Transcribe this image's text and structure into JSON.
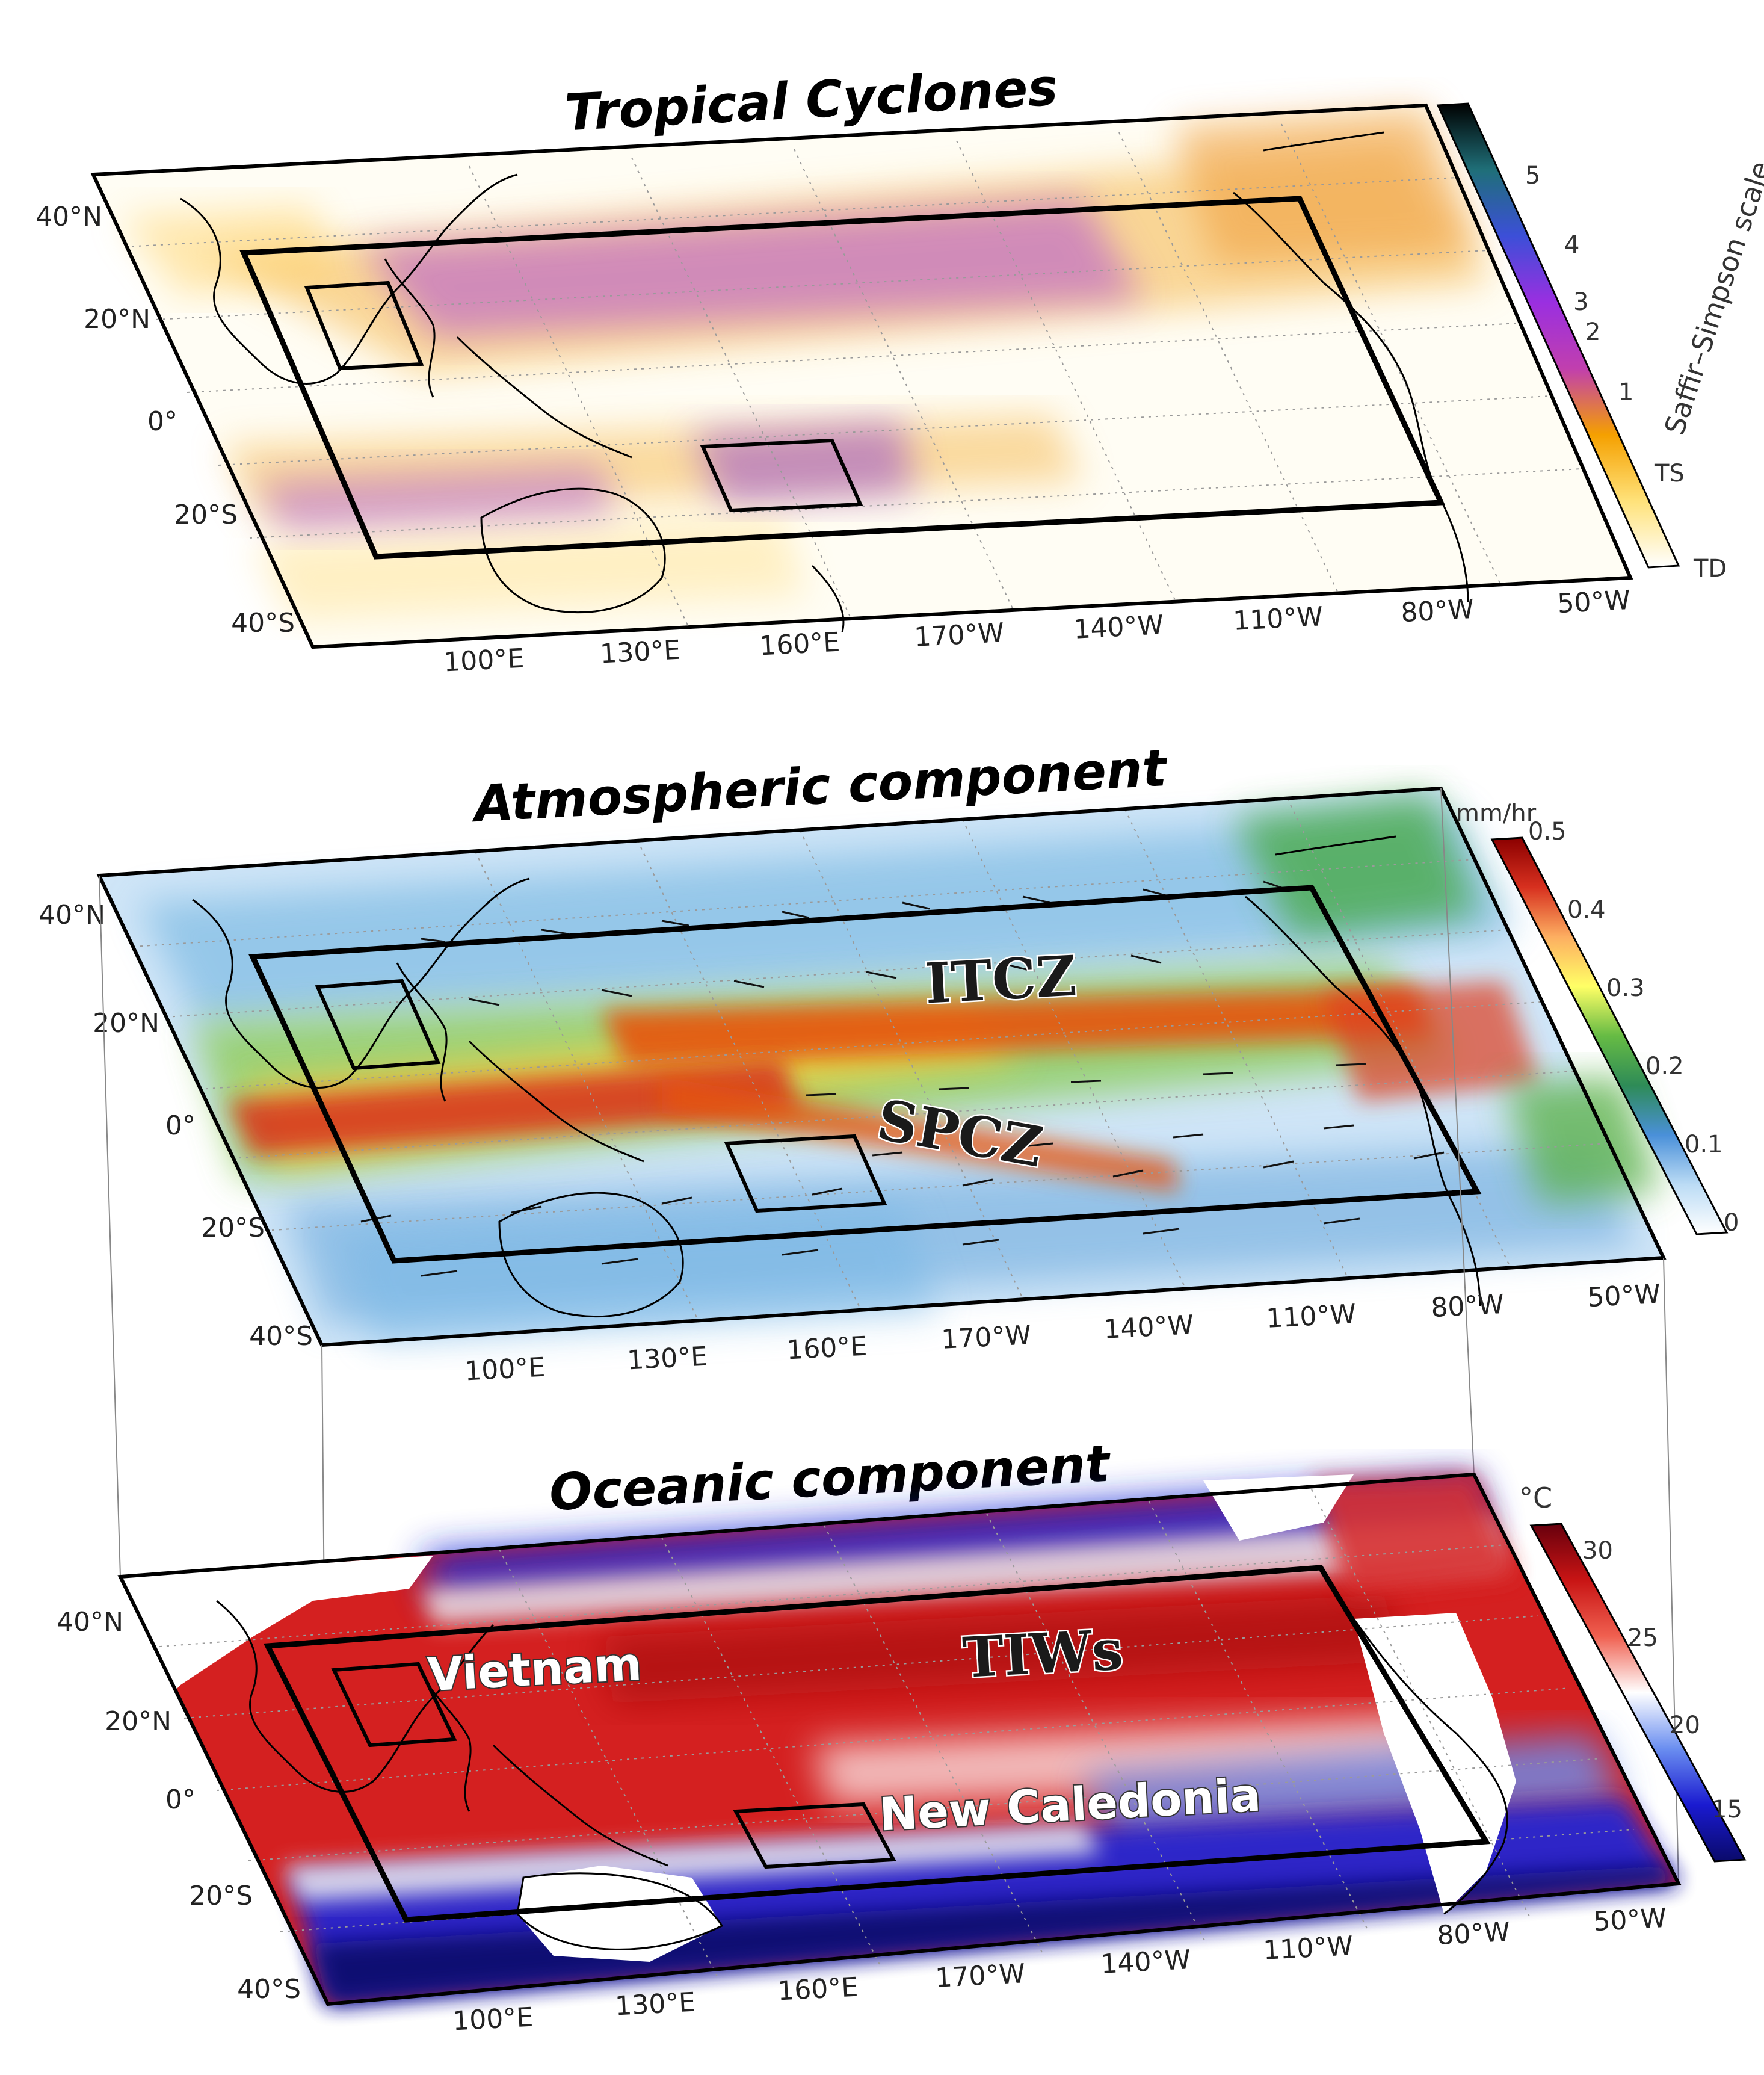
{
  "panels": [
    {
      "id": "cyclones",
      "title": "Tropical Cyclones",
      "lat_ticks": [
        "40°N",
        "20°N",
        "0°",
        "20°S",
        "40°S"
      ],
      "lon_ticks": [
        "100°E",
        "130°E",
        "160°E",
        "170°W",
        "140°W",
        "110°W",
        "80°W",
        "50°W"
      ],
      "colorbar": {
        "label": "Saffir–Simpson scale",
        "ticks": [
          "5",
          "4",
          "3",
          "2",
          "1",
          "TS",
          "TD"
        ],
        "colors": [
          "#000000",
          "#1f6f78",
          "#3c4fd8",
          "#9a2fe0",
          "#c13fae",
          "#f5a000",
          "#ffe27a",
          "#ffffff"
        ]
      }
    },
    {
      "id": "atmosphere",
      "title": "Atmospheric component",
      "lat_ticks": [
        "40°N",
        "20°N",
        "0°",
        "20°S",
        "40°S"
      ],
      "lon_ticks": [
        "100°E",
        "130°E",
        "160°E",
        "170°W",
        "140°W",
        "110°W",
        "80°W",
        "50°W"
      ],
      "labels": [
        "ITCZ",
        "SPCZ"
      ],
      "colorbar": {
        "unit": "mm/hr",
        "ticks": [
          "0.5",
          "0.4",
          "0.3",
          "0.2",
          "0.1",
          "0"
        ],
        "colors": [
          "#8b0000",
          "#d7301f",
          "#fdae61",
          "#ffff66",
          "#66bb44",
          "#2e8b57",
          "#4a90d9",
          "#bcdcf5",
          "#ffffff"
        ]
      }
    },
    {
      "id": "ocean",
      "title": "Oceanic component",
      "lat_ticks": [
        "40°N",
        "20°N",
        "0°",
        "20°S",
        "40°S"
      ],
      "lon_ticks": [
        "100°E",
        "130°E",
        "160°E",
        "170°W",
        "140°W",
        "110°W",
        "80°W",
        "50°W"
      ],
      "labels": [
        "TIWs",
        "Vietnam",
        "New Caledonia"
      ],
      "colorbar": {
        "unit": "°C",
        "ticks": [
          "30",
          "25",
          "20",
          "15"
        ],
        "colors": [
          "#67000d",
          "#c81414",
          "#f06050",
          "#ffffff",
          "#6a8ef0",
          "#1a1ad0",
          "#0a0a6a"
        ]
      }
    }
  ]
}
